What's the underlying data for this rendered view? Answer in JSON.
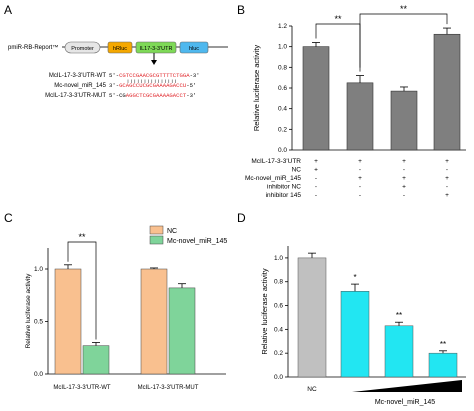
{
  "panel_letters": [
    "A",
    "B",
    "C",
    "D"
  ],
  "panel_a": {
    "vector_label": "pmiR-RB-Report™",
    "elements": [
      {
        "label": "Promoter",
        "color": "#e6e6e6"
      },
      {
        "label": "hRluc",
        "color": "#f5a800"
      },
      {
        "label": "IL17-3-3'UTR",
        "color": "#7ed957"
      },
      {
        "label": "hluc",
        "color": "#4fb8ee"
      }
    ],
    "rows": [
      {
        "name": "McIL-17-3-3'UTR-WT",
        "prefix": "5'-",
        "sequence": "CGTCCGAACGCGTTTTCTGGA",
        "suffix": "-3'"
      },
      {
        "name": "Mc-novel_miR_145",
        "prefix": "3'-",
        "sequence": "GCAGCCUCGCGAAAAGACCU",
        "suffix": "-5'"
      },
      {
        "name": "McIL-17-3-3'UTR-MUT",
        "prefix": "5'-CG",
        "sequence": "AGGCTCGCGAAAAGACCT",
        "suffix": "-3'"
      }
    ],
    "sequence_color": "#e0262b"
  },
  "chart_data": [
    {
      "panel": "B",
      "type": "bar",
      "ylabel": "Relative luciferase activity",
      "ylim": [
        0,
        1.2
      ],
      "yticks": [
        "0.0",
        "0.2",
        "0.4",
        "0.6",
        "0.8",
        "1.0",
        "1.2"
      ],
      "values": [
        1.0,
        0.65,
        0.57,
        1.12
      ],
      "errors": [
        0.04,
        0.07,
        0.04,
        0.06
      ],
      "bar_color": "#7f7f7f",
      "significance": [
        "**",
        "**"
      ],
      "condition_rows": [
        {
          "label": "McIL-17-3-3'UTR",
          "marks": [
            "+",
            "+",
            "+",
            "+"
          ]
        },
        {
          "label": "NC",
          "marks": [
            "+",
            "-",
            "-",
            "-"
          ]
        },
        {
          "label": "Mc-novel_miR_145",
          "marks": [
            "-",
            "+",
            "+",
            "+"
          ]
        },
        {
          "label": "inhibitor NC",
          "marks": [
            "-",
            "-",
            "+",
            "-"
          ]
        },
        {
          "label": "inhibitor 145",
          "marks": [
            "-",
            "-",
            "-",
            "+"
          ]
        }
      ]
    },
    {
      "panel": "C",
      "type": "bar",
      "ylabel": "Relative luciferase activity",
      "ylim": [
        0,
        1.2
      ],
      "yticks": [
        "0.0",
        "0.5",
        "1.0"
      ],
      "categories": [
        "McIL-17-3-3'UTR-WT",
        "McIL-17-3-3'UTR-MUT"
      ],
      "series": [
        {
          "name": "NC",
          "values": [
            1.0,
            1.0
          ],
          "errors": [
            0.04,
            0.01
          ],
          "color": "#f9c08f"
        },
        {
          "name": "Mc-novel_miR_145",
          "values": [
            0.27,
            0.82
          ],
          "errors": [
            0.03,
            0.04
          ],
          "color": "#7fd49a"
        }
      ],
      "significance": [
        "**"
      ]
    },
    {
      "panel": "D",
      "type": "bar",
      "ylabel": "Relative luciferase activity",
      "ylim": [
        0,
        1.1
      ],
      "yticks": [
        "0.0",
        "0.2",
        "0.4",
        "0.6",
        "0.8",
        "1.0"
      ],
      "categories": [
        "NC",
        "",
        "",
        ""
      ],
      "values": [
        1.0,
        0.72,
        0.43,
        0.2
      ],
      "errors": [
        0.04,
        0.06,
        0.03,
        0.02
      ],
      "colors": [
        "#c0c0c0",
        "#22e6f2",
        "#22e6f2",
        "#22e6f2"
      ],
      "significance": [
        "*",
        "**",
        "**"
      ],
      "group_label": "Mc-novel_miR_145"
    }
  ]
}
